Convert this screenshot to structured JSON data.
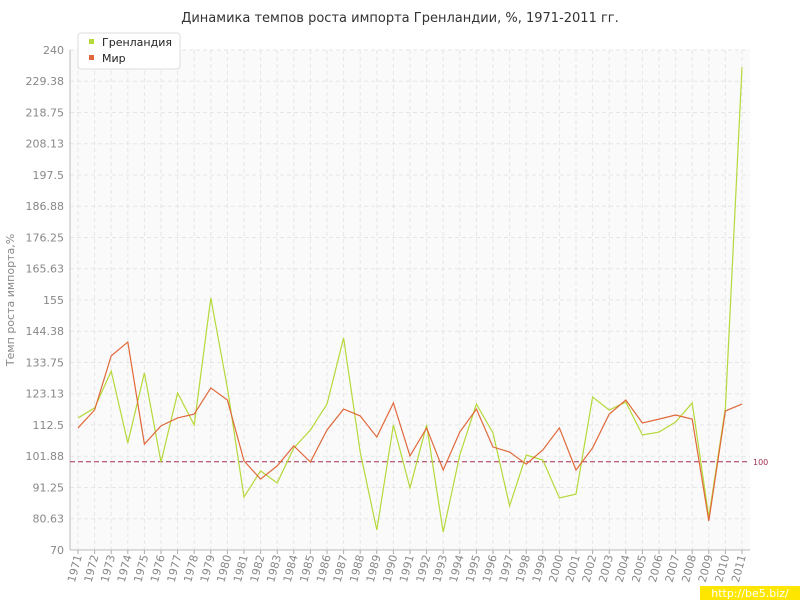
{
  "chart_data": {
    "type": "line",
    "title": "Динамика темпов роста импорта Гренландии, %, 1971-2011 гг.",
    "y_label": "Темп роста импорта,%",
    "categories": [
      "1971",
      "1972",
      "1973",
      "1974",
      "1975",
      "1976",
      "1977",
      "1978",
      "1979",
      "1980",
      "1981",
      "1982",
      "1983",
      "1984",
      "1985",
      "1986",
      "1987",
      "1988",
      "1989",
      "1990",
      "1991",
      "1992",
      "1993",
      "1994",
      "1995",
      "1996",
      "1997",
      "1998",
      "1999",
      "2000",
      "2001",
      "2002",
      "2003",
      "2004",
      "2005",
      "2006",
      "2007",
      "2008",
      "2009",
      "2010",
      "2011"
    ],
    "series": [
      {
        "name": "Гренландия",
        "color": "#b5d93a",
        "values": [
          114.9,
          118.3,
          130.8,
          106.4,
          130.2,
          99.9,
          123.4,
          112.5,
          155.7,
          125.1,
          88.0,
          96.9,
          92.8,
          104.7,
          110.8,
          119.6,
          142.1,
          103.3,
          76.8,
          112.5,
          91.1,
          112.5,
          76.1,
          102.3,
          119.6,
          109.8,
          85.0,
          102.3,
          100.6,
          87.7,
          89.0,
          122.0,
          117.6,
          120.3,
          109.1,
          110.1,
          113.5,
          120.0,
          81.2,
          118.3,
          234.2
        ]
      },
      {
        "name": "Мир",
        "color": "#e0683a",
        "values": [
          111.5,
          117.6,
          136.0,
          140.7,
          106.0,
          112.2,
          114.9,
          116.2,
          125.1,
          121.0,
          100.3,
          94.1,
          98.6,
          105.4,
          99.9,
          110.8,
          117.9,
          115.6,
          108.4,
          120.0,
          102.0,
          111.5,
          97.2,
          110.1,
          117.9,
          105.0,
          103.3,
          99.2,
          104.0,
          111.5,
          97.2,
          104.7,
          116.2,
          121.0,
          113.2,
          114.5,
          115.9,
          114.5,
          79.9,
          117.3,
          119.6
        ]
      }
    ],
    "ylim": [
      70,
      240
    ],
    "yticks": [
      70,
      80.63,
      91.25,
      101.88,
      112.5,
      123.13,
      133.75,
      144.38,
      155,
      165.63,
      176.25,
      186.88,
      197.5,
      208.13,
      218.75,
      229.38,
      240
    ],
    "reference_line": 100,
    "grid": true,
    "legend": "top-left",
    "watermark": "http://be5.biz/"
  }
}
